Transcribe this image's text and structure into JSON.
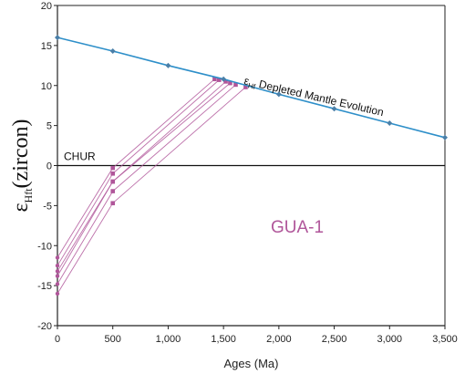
{
  "chart_data": {
    "type": "line",
    "xlabel": "Ages (Ma)",
    "ylabel": {
      "main": "ε",
      "sub": "Hft",
      "rest": "(zircon)"
    },
    "xlim": [
      0,
      3500
    ],
    "ylim": [
      -20,
      20
    ],
    "xticks": [
      0,
      500,
      1000,
      1500,
      2000,
      2500,
      3000,
      3500
    ],
    "xtick_labels": [
      "0",
      "500",
      "1,000",
      "1,500",
      "2,000",
      "2,500",
      "3,000",
      "3,500"
    ],
    "yticks": [
      20,
      15,
      10,
      5,
      0,
      -5,
      -10,
      -15,
      -20
    ],
    "ytick_labels": [
      "20",
      "15",
      "10",
      "5",
      "0",
      "-5",
      "-10",
      "-15",
      "-20"
    ],
    "grid": false,
    "chur": {
      "label": "CHUR",
      "y": 0
    },
    "depleted_mantle": {
      "label_sym": "ε",
      "label_sub": "Hf",
      "label_text": " Depleted Mantle Evolution",
      "x": [
        0,
        500,
        1000,
        1500,
        2000,
        2500,
        3000,
        3500
      ],
      "y": [
        16,
        14.3,
        12.5,
        10.8,
        8.9,
        7.1,
        5.3,
        3.5
      ],
      "color": "#2e8fc9",
      "marker_color": "#4a7fa8"
    },
    "sample": {
      "label": "GUA-1",
      "color": "#b0569a",
      "paths": [
        {
          "x": [
            0,
            500,
            1420
          ],
          "y": [
            -11.5,
            -0.3,
            10.8
          ]
        },
        {
          "x": [
            0,
            500,
            1460
          ],
          "y": [
            -12.5,
            -1.0,
            10.7
          ]
        },
        {
          "x": [
            0,
            500,
            1520
          ],
          "y": [
            -13.2,
            -2.0,
            10.5
          ]
        },
        {
          "x": [
            0,
            500,
            1560
          ],
          "y": [
            -13.8,
            -2.0,
            10.3
          ]
        },
        {
          "x": [
            0,
            500,
            1610
          ],
          "y": [
            -14.8,
            -3.2,
            10.1
          ]
        },
        {
          "x": [
            0,
            500,
            1700
          ],
          "y": [
            -16.0,
            -4.7,
            9.8
          ]
        }
      ]
    }
  }
}
